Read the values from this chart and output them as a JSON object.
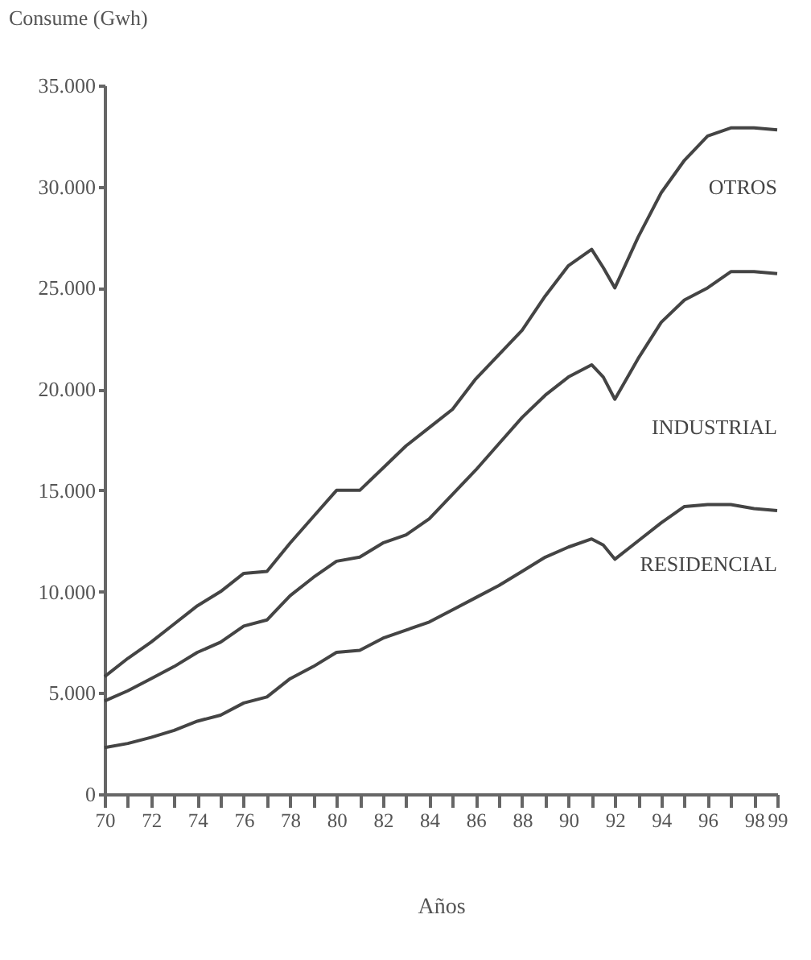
{
  "chart_data": {
    "type": "line",
    "ylabel": "Consume (Gwh)",
    "xlabel": "Años",
    "x": [
      70,
      71,
      72,
      73,
      74,
      75,
      76,
      77,
      78,
      79,
      80,
      81,
      82,
      83,
      84,
      85,
      86,
      87,
      88,
      89,
      90,
      91,
      91.5,
      92,
      93,
      94,
      95,
      96,
      97,
      98,
      99
    ],
    "series": [
      {
        "name": "OTROS",
        "color": "#444444",
        "values": [
          5800,
          6700,
          7500,
          8400,
          9300,
          10000,
          10900,
          11000,
          12400,
          13700,
          15000,
          15000,
          16100,
          17200,
          18100,
          19000,
          20500,
          21700,
          22900,
          24600,
          26100,
          26900,
          26000,
          25000,
          27500,
          29700,
          31300,
          32500,
          32900,
          32900,
          32800
        ]
      },
      {
        "name": "INDUSTRIAL",
        "color": "#444444",
        "values": [
          4600,
          5100,
          5700,
          6300,
          7000,
          7500,
          8300,
          8600,
          9800,
          10700,
          11500,
          11700,
          12400,
          12800,
          13600,
          14800,
          16000,
          17300,
          18600,
          19700,
          20600,
          21200,
          20600,
          19500,
          21500,
          23300,
          24400,
          25000,
          25800,
          25800,
          25700
        ]
      },
      {
        "name": "RESIDENCIAL",
        "color": "#444444",
        "values": [
          2300,
          2500,
          2800,
          3150,
          3600,
          3900,
          4500,
          4800,
          5700,
          6300,
          7000,
          7100,
          7700,
          8100,
          8500,
          9100,
          9700,
          10300,
          11000,
          11700,
          12200,
          12600,
          12300,
          11600,
          12500,
          13400,
          14200,
          14300,
          14300,
          14100,
          14000
        ]
      }
    ],
    "xlim": [
      70,
      99
    ],
    "xticks": [
      70,
      {
        "value": 71,
        "label": null
      },
      72,
      {
        "value": 73,
        "label": null
      },
      74,
      {
        "value": 75,
        "label": null
      },
      76,
      {
        "value": 77,
        "label": null
      },
      78,
      {
        "value": 79,
        "label": null
      },
      80,
      {
        "value": 81,
        "label": null
      },
      82,
      {
        "value": 83,
        "label": null
      },
      84,
      {
        "value": 85,
        "label": null
      },
      86,
      {
        "value": 87,
        "label": null
      },
      88,
      {
        "value": 89,
        "label": null
      },
      90,
      {
        "value": 91,
        "label": null
      },
      92,
      {
        "value": 93,
        "label": null
      },
      94,
      {
        "value": 95,
        "label": null
      },
      96,
      {
        "value": 97,
        "label": null
      },
      98,
      99
    ],
    "ylim": [
      0,
      35000
    ],
    "yticks": [
      0,
      {
        "value": 5000,
        "label": "5.000"
      },
      {
        "value": 10000,
        "label": "10.000"
      },
      {
        "value": 15000,
        "label": "15.000"
      },
      {
        "value": 20000,
        "label": "20.000"
      },
      {
        "value": 25000,
        "label": "25.000"
      },
      {
        "value": 30000,
        "label": "30.000"
      },
      {
        "value": 35000,
        "label": "35.000"
      }
    ],
    "grid": false,
    "marker": "none",
    "line_style": "solid"
  }
}
